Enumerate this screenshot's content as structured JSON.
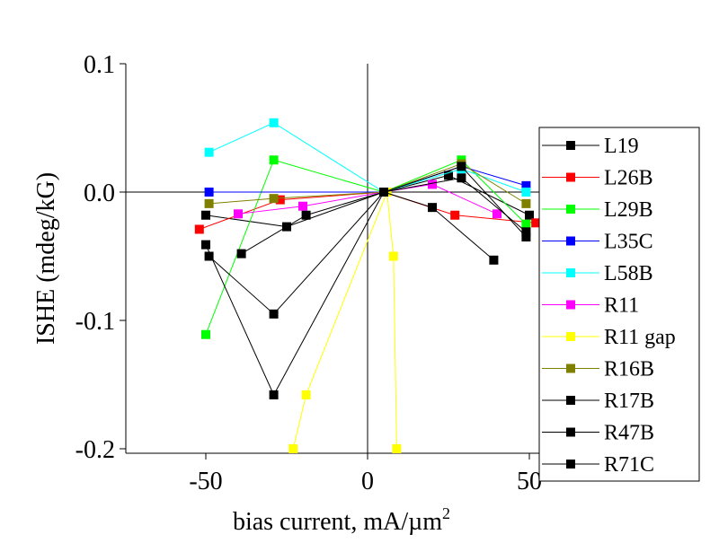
{
  "chart_data": {
    "type": "line",
    "title": "",
    "xlabel_main": "bias current, mA/µm",
    "xlabel_sup": "2",
    "ylabel": "ISHE (mdeg/kG)",
    "xlim": [
      -75,
      50
    ],
    "ylim": [
      -0.2,
      0.1
    ],
    "xticks": [
      -50,
      0,
      50
    ],
    "xtick_labels": [
      "-50",
      "0",
      "50"
    ],
    "yticks": [
      -0.2,
      -0.1,
      0.0,
      0.1
    ],
    "ytick_labels": [
      "-0.2",
      "-0.1",
      "0.0",
      "0.1"
    ],
    "grid": false,
    "zero_lines": true,
    "legend_position": "right",
    "series": [
      {
        "name": "L19",
        "color": "#000000",
        "x": [
          -50,
          -25,
          5,
          25,
          50
        ],
        "y": [
          -0.018,
          -0.027,
          0.0,
          0.013,
          -0.018
        ]
      },
      {
        "name": "L26B",
        "color": "#ff0000",
        "x": [
          -52,
          -27,
          5,
          27,
          52
        ],
        "y": [
          -0.029,
          -0.006,
          0.0,
          -0.018,
          -0.024
        ]
      },
      {
        "name": "L29B",
        "color": "#00ff00",
        "x": [
          -50,
          -29,
          5,
          29,
          49
        ],
        "y": [
          -0.111,
          0.025,
          0.0,
          0.025,
          -0.025
        ]
      },
      {
        "name": "L35C",
        "color": "#0000ff",
        "x": [
          -49,
          5,
          29,
          49
        ],
        "y": [
          0.0,
          0.0,
          0.02,
          0.005
        ]
      },
      {
        "name": "L58B",
        "color": "#00ffff",
        "x": [
          -49,
          -29,
          5,
          29,
          49
        ],
        "y": [
          0.031,
          0.054,
          0.0,
          0.018,
          0.0
        ]
      },
      {
        "name": "R11",
        "color": "#ff00ff",
        "x": [
          -40,
          -20,
          5,
          20,
          40
        ],
        "y": [
          -0.017,
          -0.011,
          0.0,
          0.006,
          -0.017
        ]
      },
      {
        "name": "R11 gap",
        "color": "#ffff00",
        "x": [
          -23,
          -19,
          6,
          8,
          9
        ],
        "y": [
          -0.2,
          -0.158,
          0.0,
          -0.05,
          -0.2
        ]
      },
      {
        "name": "R16B",
        "color": "#808000",
        "x": [
          -49,
          -29,
          5,
          29,
          49
        ],
        "y": [
          -0.009,
          -0.005,
          0.0,
          0.022,
          -0.009
        ]
      },
      {
        "name": "R17B",
        "color": "#000000",
        "x": [
          -50,
          -29,
          5,
          29,
          49
        ],
        "y": [
          -0.041,
          -0.158,
          0.0,
          0.02,
          -0.035
        ]
      },
      {
        "name": "R47B",
        "color": "#000000",
        "x": [
          -49,
          -29,
          5,
          20,
          39
        ],
        "y": [
          -0.05,
          -0.095,
          0.0,
          -0.012,
          -0.053
        ]
      },
      {
        "name": "R71C",
        "color": "#000000",
        "x": [
          -39,
          -19,
          5,
          29,
          49
        ],
        "y": [
          -0.048,
          -0.018,
          0.0,
          0.011,
          -0.031
        ]
      }
    ]
  }
}
